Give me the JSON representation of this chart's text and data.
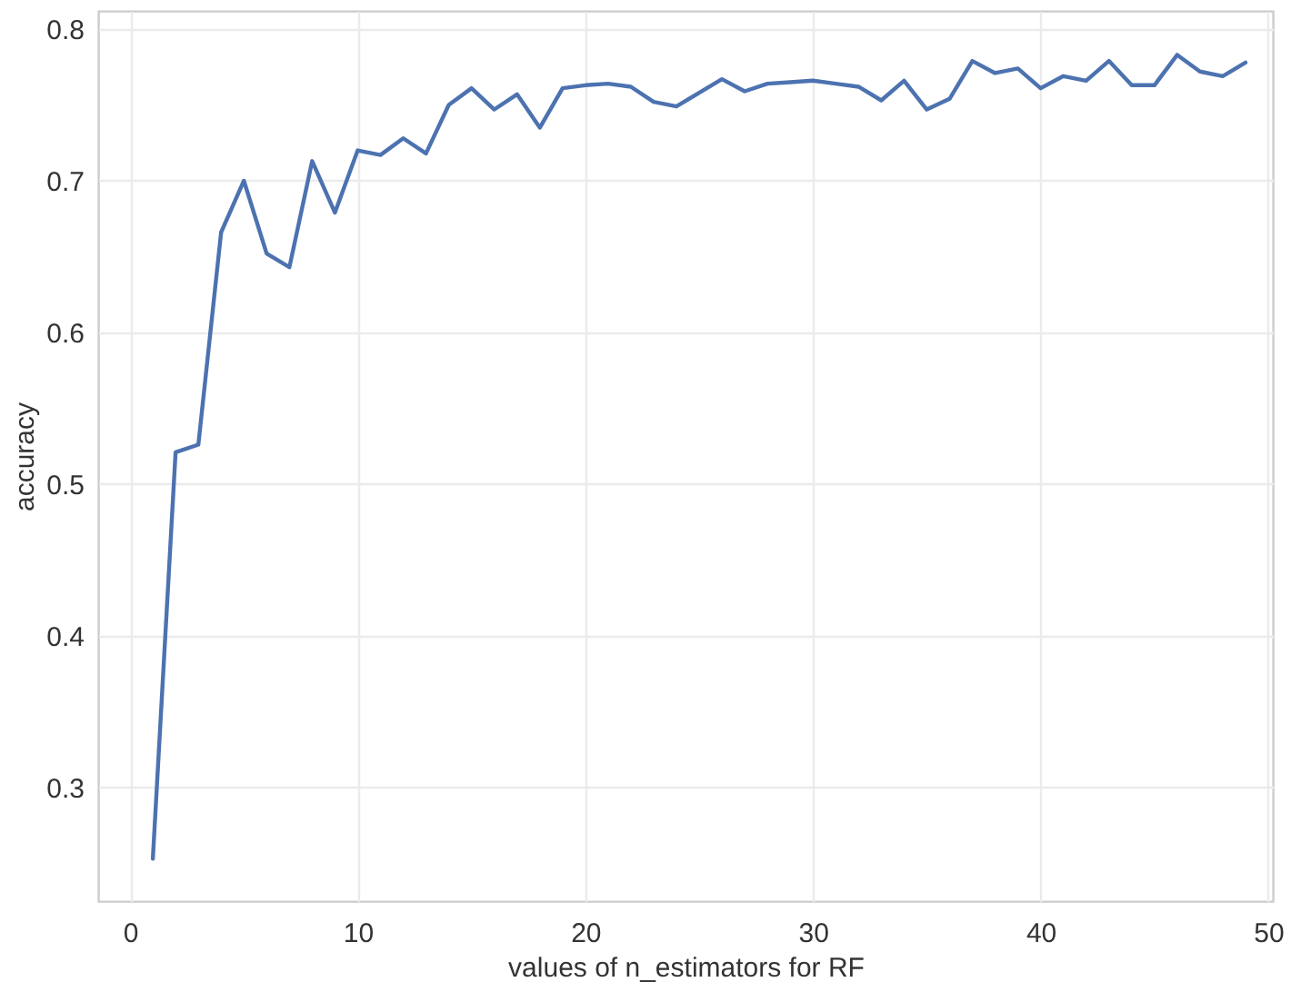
{
  "chart_data": {
    "type": "line",
    "xlabel": "values of n_estimators for RF",
    "ylabel": "accuracy",
    "x": [
      1,
      2,
      3,
      4,
      5,
      6,
      7,
      8,
      9,
      10,
      11,
      12,
      13,
      14,
      15,
      16,
      17,
      18,
      19,
      20,
      21,
      22,
      23,
      24,
      25,
      26,
      27,
      28,
      29,
      30,
      31,
      32,
      33,
      34,
      35,
      36,
      37,
      38,
      39,
      40,
      41,
      42,
      43,
      44,
      45,
      46,
      47,
      48,
      49
    ],
    "series": [
      {
        "color": "#4c72b0",
        "values": [
          0.253,
          0.521,
          0.526,
          0.666,
          0.7,
          0.652,
          0.643,
          0.713,
          0.679,
          0.72,
          0.717,
          0.728,
          0.718,
          0.75,
          0.761,
          0.747,
          0.757,
          0.735,
          0.761,
          0.763,
          0.764,
          0.762,
          0.752,
          0.749,
          0.758,
          0.767,
          0.759,
          0.764,
          0.765,
          0.766,
          0.764,
          0.762,
          0.753,
          0.766,
          0.747,
          0.754,
          0.779,
          0.771,
          0.774,
          0.761,
          0.769,
          0.766,
          0.779,
          0.763,
          0.763,
          0.783,
          0.772,
          0.769,
          0.778
        ]
      }
    ],
    "xlim": [
      -1.4,
      50.2
    ],
    "ylim": [
      0.225,
      0.812
    ],
    "xticks": [
      0,
      10,
      20,
      30,
      40,
      50
    ],
    "yticks": [
      0.3,
      0.4,
      0.5,
      0.6,
      0.7,
      0.8
    ],
    "grid": true,
    "marker": "none",
    "line_style": "solid"
  }
}
